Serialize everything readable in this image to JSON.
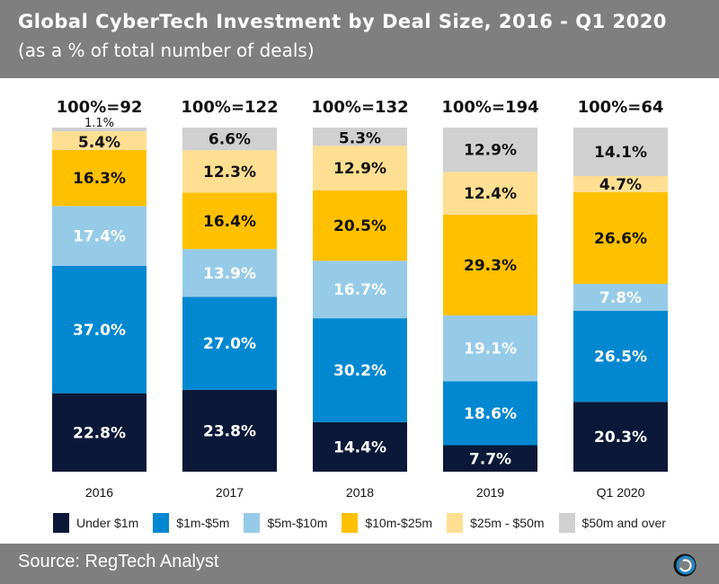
{
  "header": {
    "title": "Global CyberTech Investment by Deal Size, 2016 - Q1 2020",
    "subtitle": "(as a % of total number of deals)"
  },
  "footer": {
    "source": "Source: RegTech Analyst",
    "logo_icon": "circular-logo-icon"
  },
  "chart_data": {
    "type": "bar",
    "stacked": true,
    "title": "Global CyberTech Investment by Deal Size, 2016 - Q1 2020",
    "subtitle": "(as a % of total number of deals)",
    "xlabel": "",
    "ylabel": "",
    "ylim": [
      0,
      100
    ],
    "grid": false,
    "legend_position": "bottom",
    "categories": [
      "2016",
      "2017",
      "2018",
      "2019",
      "Q1 2020"
    ],
    "totals": [
      "100%=92",
      "100%=122",
      "100%=132",
      "100%=194",
      "100%=64"
    ],
    "series": [
      {
        "name": "Under $1m",
        "color": "#0b1838",
        "label_color": "#ffffff",
        "values": [
          22.8,
          23.8,
          14.4,
          7.7,
          20.3
        ]
      },
      {
        "name": "$1m-$5m",
        "color": "#0288d1",
        "label_color": "#ffffff",
        "values": [
          37.0,
          27.0,
          30.2,
          18.6,
          26.5
        ]
      },
      {
        "name": "$5m-$10m",
        "color": "#96cbe8",
        "label_color": "#ffffff",
        "values": [
          17.4,
          13.9,
          16.7,
          19.1,
          7.8
        ]
      },
      {
        "name": "$10m-$25m",
        "color": "#ffc000",
        "label_color": "#111111",
        "values": [
          16.3,
          16.4,
          20.5,
          29.3,
          26.6
        ]
      },
      {
        "name": "$25m - $50m",
        "color": "#ffdf91",
        "label_color": "#111111",
        "values": [
          5.4,
          12.3,
          12.9,
          12.4,
          4.7
        ]
      },
      {
        "name": "$50m and over",
        "color": "#d0d0d0",
        "label_color": "#111111",
        "values": [
          1.1,
          6.6,
          5.3,
          12.9,
          14.1
        ]
      }
    ]
  }
}
